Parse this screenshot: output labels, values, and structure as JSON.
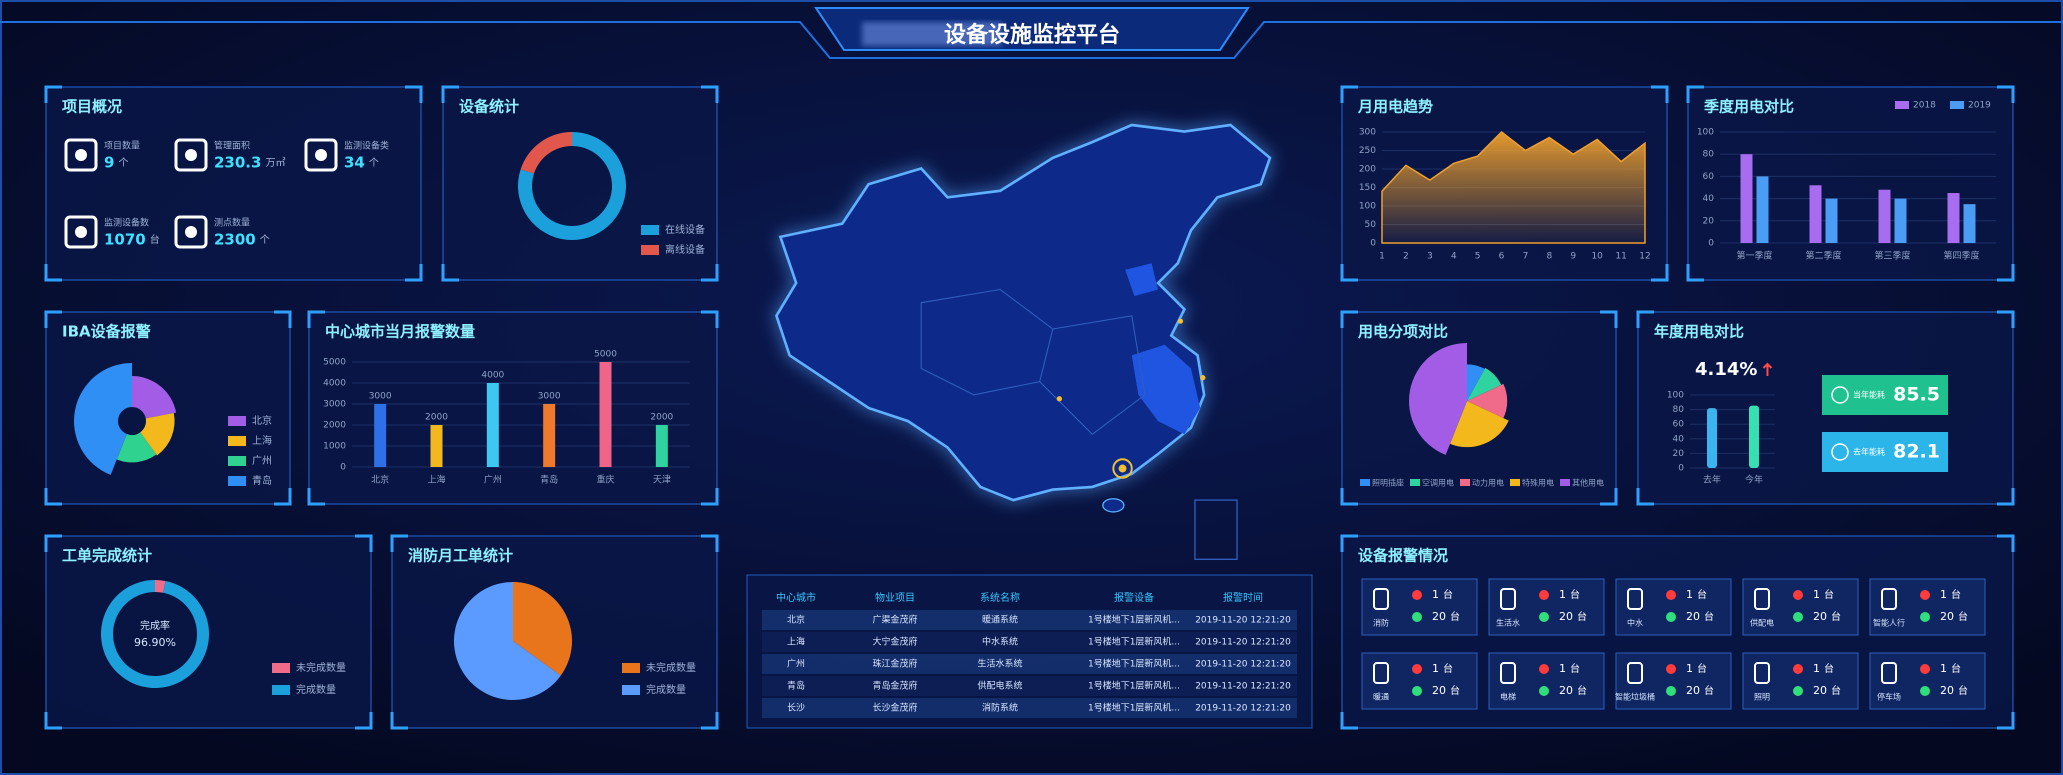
{
  "header": {
    "title": "设备设施监控平台"
  },
  "overview": {
    "title": "项目概况",
    "items": [
      {
        "label": "项目数量",
        "value": 9,
        "unit": "个"
      },
      {
        "label": "管理面积",
        "value": 230.3,
        "unit": "万㎡"
      },
      {
        "label": "监测设备类",
        "value": 34,
        "unit": "个"
      },
      {
        "label": "监测设备数",
        "value": 1070,
        "unit": "台"
      },
      {
        "label": "测点数量",
        "value": 2300,
        "unit": "个"
      }
    ]
  },
  "device_stats": {
    "title": "设备统计",
    "type": "donut",
    "categories": [
      "在线设备",
      "离线设备"
    ],
    "values": [
      80,
      20
    ],
    "colors": [
      "#1ba0dc",
      "#e2574c"
    ]
  },
  "iba_alarm": {
    "title": "IBA设备报警",
    "type": "rose",
    "categories": [
      "北京",
      "上海",
      "广州",
      "青岛"
    ],
    "values": [
      22,
      18,
      16,
      44
    ],
    "colors": [
      "#a25ce6",
      "#f2b81c",
      "#2fd38f",
      "#2f8ff5"
    ]
  },
  "city_alarm": {
    "title": "中心城市当月报警数量",
    "type": "bar",
    "categories": [
      "北京",
      "上海",
      "广州",
      "青岛",
      "重庆",
      "天津"
    ],
    "values": [
      3000,
      2000,
      4000,
      3000,
      5000,
      2000
    ],
    "colors": [
      "#2f6fe8",
      "#f2b81c",
      "#3cc8f0",
      "#f07a2c",
      "#f0648a",
      "#2fd3a0"
    ],
    "ylim": [
      0,
      5000
    ],
    "yticks": [
      0,
      1000,
      2000,
      3000,
      4000,
      5000
    ],
    "grid": true
  },
  "work_orders": {
    "title": "工单完成统计",
    "type": "donut",
    "center_label": "完成率",
    "rate": {
      "value": 96.9,
      "label": "96.90%"
    },
    "categories": [
      "未完成数量",
      "完成数量"
    ],
    "colors": [
      "#f06a8a",
      "#1ba0dc"
    ]
  },
  "fire_orders": {
    "title": "消防月工单统计",
    "type": "pie",
    "categories": [
      "未完成数量",
      "完成数量"
    ],
    "values": [
      35,
      65
    ],
    "colors": [
      "#e8741c",
      "#5b9bff"
    ]
  },
  "monthly_power": {
    "title": "月用电趋势",
    "type": "area",
    "x": [
      1,
      2,
      3,
      4,
      5,
      6,
      7,
      8,
      9,
      10,
      11,
      12
    ],
    "values": [
      140,
      210,
      170,
      215,
      235,
      300,
      250,
      285,
      240,
      280,
      220,
      270
    ],
    "xlim": [
      1,
      12
    ],
    "ylim": [
      0,
      300
    ],
    "yticks": [
      0,
      50,
      100,
      150,
      200,
      250,
      300
    ],
    "color": "#f0a02c"
  },
  "quarterly_power": {
    "title": "季度用电对比",
    "type": "bar",
    "categories": [
      "第一季度",
      "第二季度",
      "第三季度",
      "第四季度"
    ],
    "series": [
      {
        "name": "2018",
        "color": "#a86cf0",
        "values": [
          80,
          52,
          48,
          45
        ]
      },
      {
        "name": "2019",
        "color": "#4a9cf5",
        "values": [
          60,
          40,
          40,
          35
        ]
      }
    ],
    "ylim": [
      0,
      100
    ],
    "yticks": [
      0,
      20,
      40,
      60,
      80,
      100
    ],
    "grid": true
  },
  "power_breakdown": {
    "title": "用电分项对比",
    "type": "pie",
    "categories": [
      "照明插座",
      "空调用电",
      "动力用电",
      "特殊用电",
      "其他用电"
    ],
    "values": [
      8,
      10,
      14,
      24,
      44
    ],
    "colors": [
      "#2f8ff5",
      "#2fd3a0",
      "#f06a8a",
      "#f2b81c",
      "#a25ce6"
    ]
  },
  "annual_power": {
    "title": "年度用电对比",
    "change": {
      "value": 4.14,
      "label": "4.14%"
    },
    "cards": [
      {
        "label": "当年能耗",
        "value": 85.5,
        "color": "#1fc28f"
      },
      {
        "label": "去年能耗",
        "value": 82.1,
        "color": "#2bb5e8"
      }
    ],
    "categories": [
      "去年",
      "今年"
    ],
    "ylim": [
      0,
      100
    ],
    "yticks": [
      0,
      20,
      40,
      60,
      80,
      100
    ]
  },
  "alarm_table": {
    "columns": [
      "中心城市",
      "物业项目",
      "系统名称",
      "报警设备",
      "报警时间"
    ],
    "rows": [
      [
        "北京",
        "广渠金茂府",
        "暖通系统",
        "1号楼地下1层新风机...",
        "2019-11-20 12:21:20"
      ],
      [
        "上海",
        "大宁金茂府",
        "中水系统",
        "1号楼地下1层新风机...",
        "2019-11-20 12:21:20"
      ],
      [
        "广州",
        "珠江金茂府",
        "生活水系统",
        "1号楼地下1层新风机...",
        "2019-11-20 12:21:20"
      ],
      [
        "青岛",
        "青岛金茂府",
        "供配电系统",
        "1号楼地下1层新风机...",
        "2019-11-20 12:21:20"
      ],
      [
        "长沙",
        "长沙金茂府",
        "消防系统",
        "1号楼地下1层新风机...",
        "2019-11-20 12:21:20"
      ]
    ]
  },
  "device_alarms": {
    "title": "设备报警情况",
    "unit": "台",
    "items": [
      {
        "name": "消防",
        "alarm": 1,
        "normal": 20
      },
      {
        "name": "生活水",
        "alarm": 1,
        "normal": 20
      },
      {
        "name": "中水",
        "alarm": 1,
        "normal": 20
      },
      {
        "name": "供配电",
        "alarm": 1,
        "normal": 20
      },
      {
        "name": "智能人行",
        "alarm": 1,
        "normal": 20
      },
      {
        "name": "暖通",
        "alarm": 1,
        "normal": 20
      },
      {
        "name": "电梯",
        "alarm": 1,
        "normal": 20
      },
      {
        "name": "智能垃圾桶",
        "alarm": 1,
        "normal": 20
      },
      {
        "name": "照明",
        "alarm": 1,
        "normal": 20
      },
      {
        "name": "停车场",
        "alarm": 1,
        "normal": 20
      }
    ]
  }
}
